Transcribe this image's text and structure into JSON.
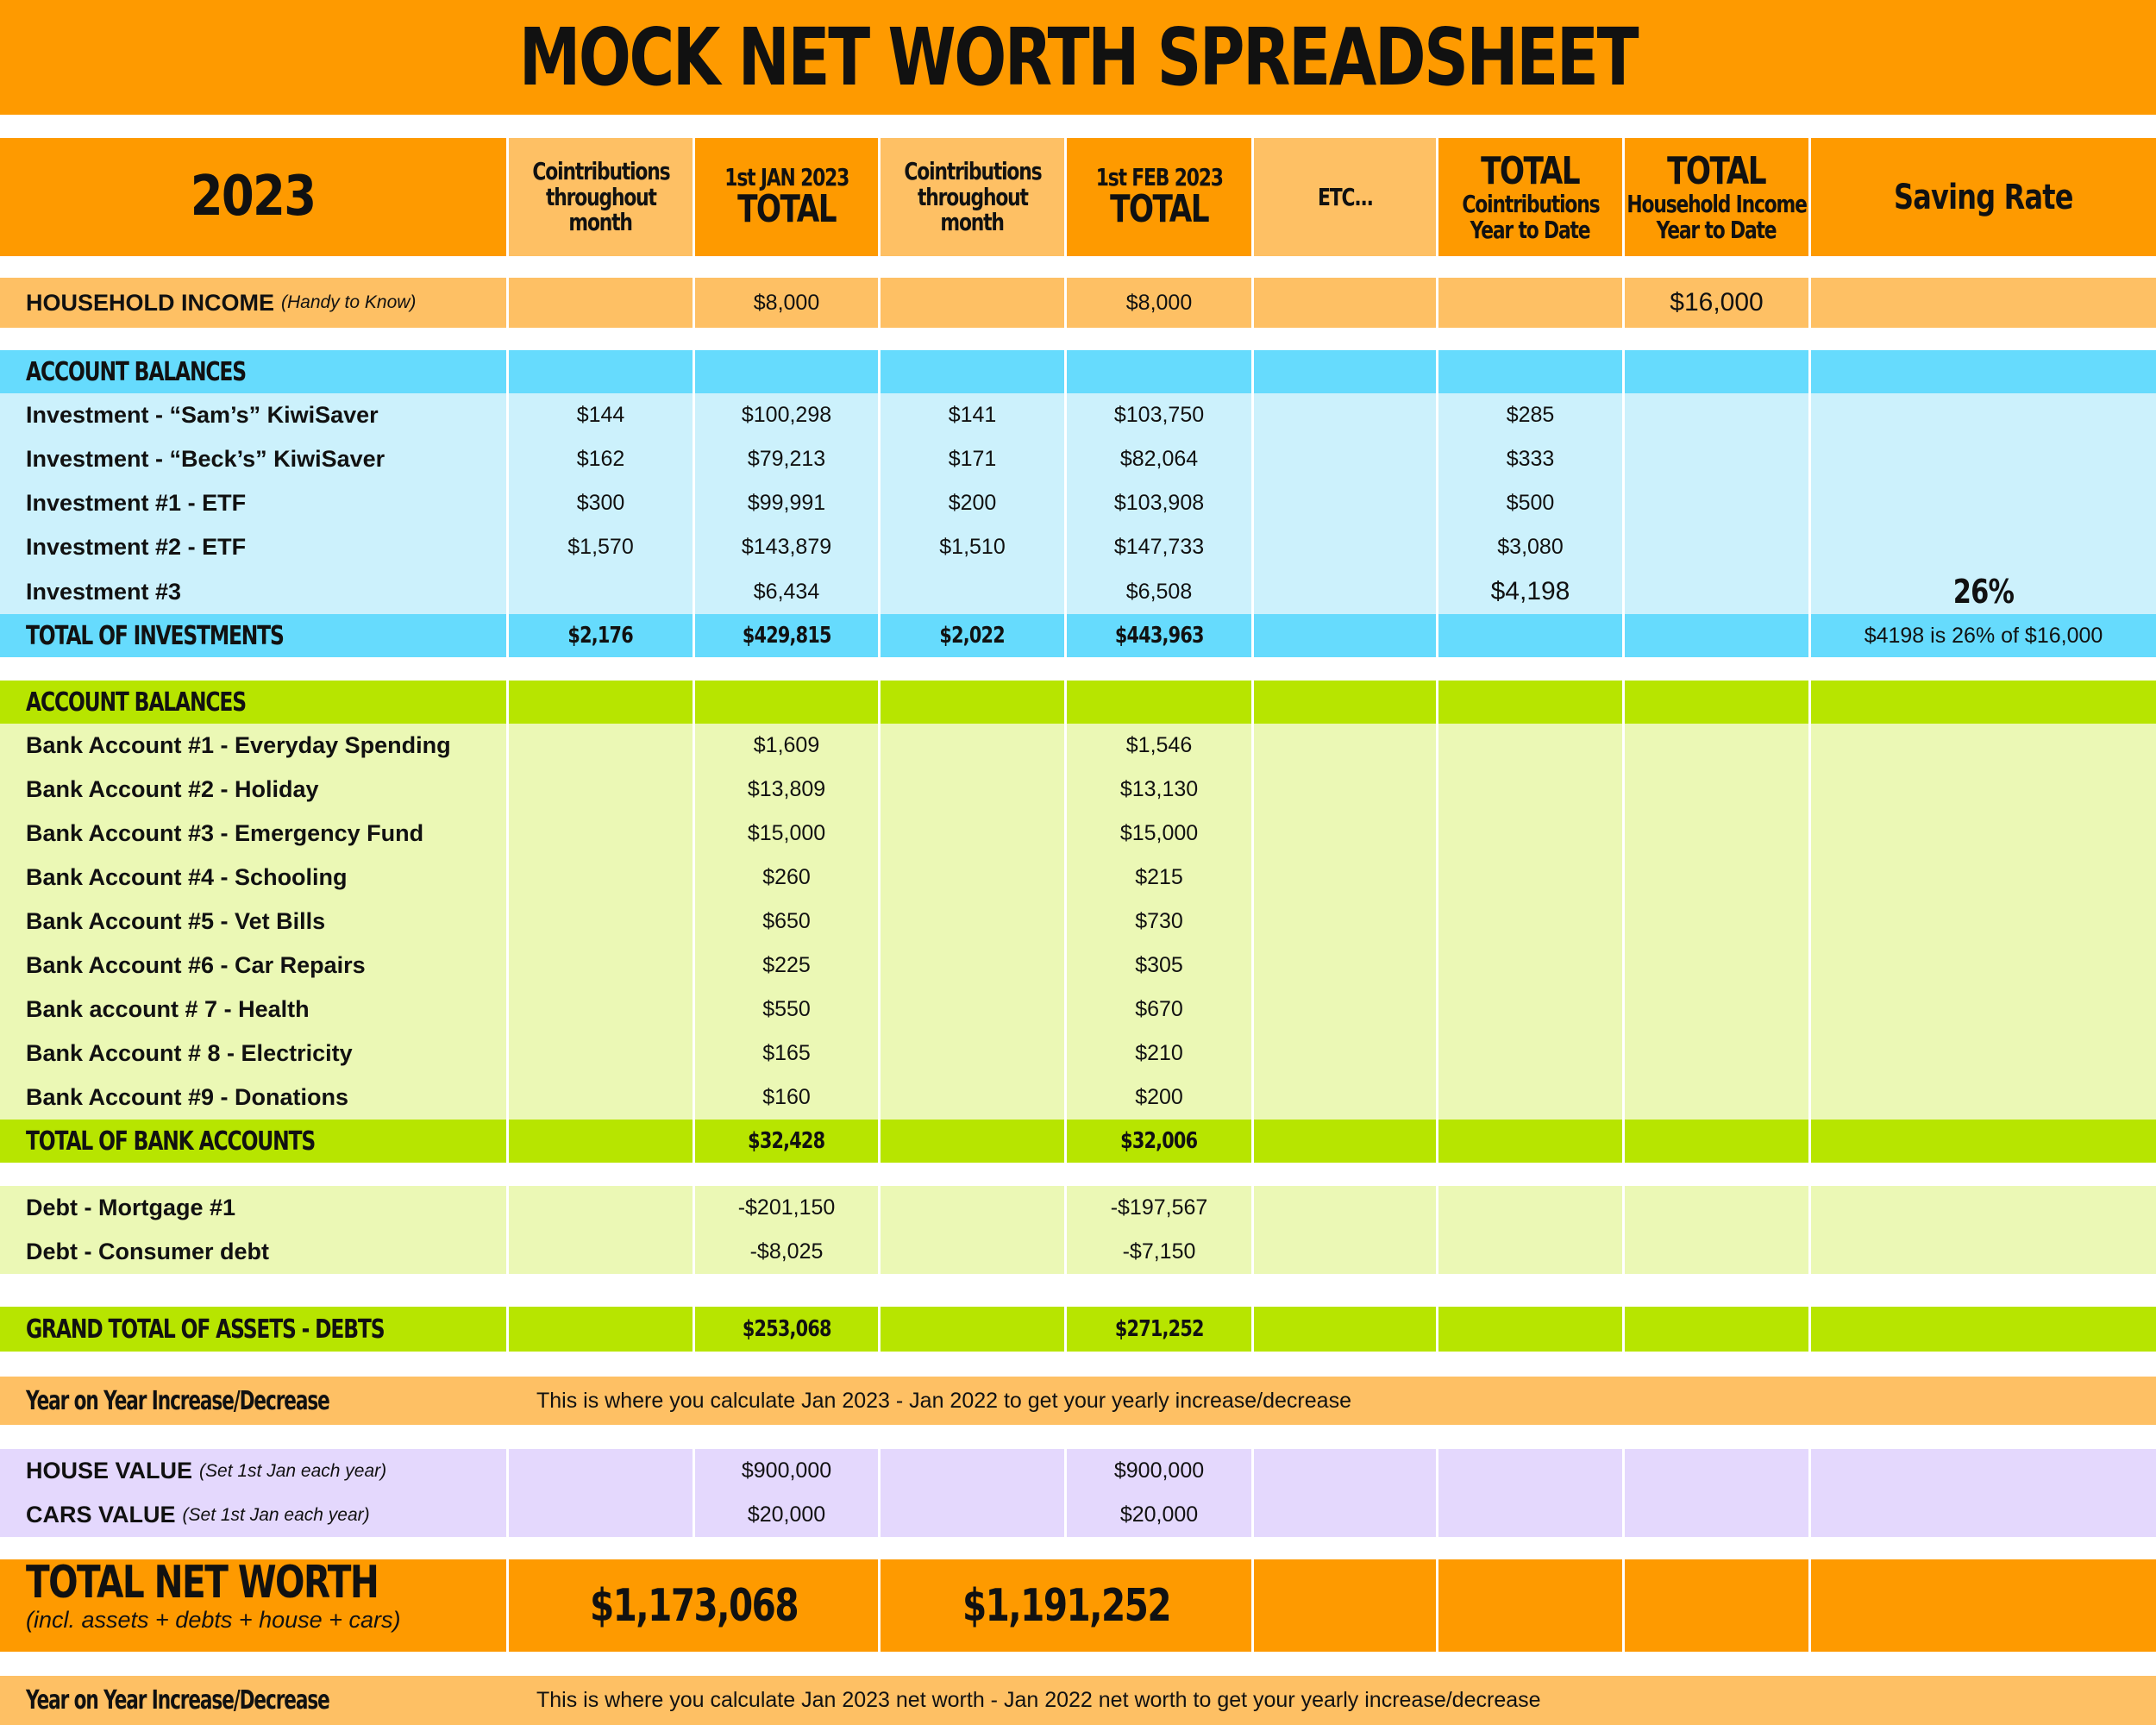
{
  "title": "MOCK NET WORTH SPREADSHEET",
  "header": {
    "year": "2023",
    "contrib": [
      "Cointributions",
      "throughout",
      "month"
    ],
    "jan_top": "1st JAN 2023",
    "feb_top": "1st FEB 2023",
    "total_word": "TOTAL",
    "etc": "ETC...",
    "ytd_contrib": [
      "Cointributions",
      "Year to Date"
    ],
    "ytd_income": [
      "Household Income",
      "Year to Date"
    ],
    "saving_rate": "Saving Rate"
  },
  "household_income": {
    "label": "HOUSEHOLD INCOME",
    "note": "(Handy to Know)",
    "jan": "$8,000",
    "feb": "$8,000",
    "ytd": "$16,000"
  },
  "investments": {
    "section_label": "ACCOUNT BALANCES",
    "rows": [
      {
        "label": "Investment - “Sam’s” KiwiSaver",
        "c1": "$144",
        "jan": "$100,298",
        "c2": "$141",
        "feb": "$103,750",
        "ytd": "$285"
      },
      {
        "label": "Investment - “Beck’s” KiwiSaver",
        "c1": "$162",
        "jan": "$79,213",
        "c2": "$171",
        "feb": "$82,064",
        "ytd": "$333"
      },
      {
        "label": "Investment #1 - ETF",
        "c1": "$300",
        "jan": "$99,991",
        "c2": "$200",
        "feb": "$103,908",
        "ytd": "$500"
      },
      {
        "label": "Investment #2 - ETF",
        "c1": "$1,570",
        "jan": "$143,879",
        "c2": "$1,510",
        "feb": "$147,733",
        "ytd": "$3,080"
      },
      {
        "label": "Investment #3",
        "c1": "",
        "jan": "$6,434",
        "c2": "",
        "feb": "$6,508",
        "ytd": "$4,198",
        "rate": "26%"
      }
    ],
    "total": {
      "label": "TOTAL OF INVESTMENTS",
      "c1": "$2,176",
      "jan": "$429,815",
      "c2": "$2,022",
      "feb": "$443,963",
      "rate_note": "$4198 is 26% of $16,000"
    }
  },
  "banks": {
    "section_label": "ACCOUNT BALANCES",
    "rows": [
      {
        "label": "Bank Account #1 - Everyday Spending",
        "jan": "$1,609",
        "feb": "$1,546"
      },
      {
        "label": "Bank Account #2 - Holiday",
        "jan": "$13,809",
        "feb": "$13,130"
      },
      {
        "label": "Bank Account #3 - Emergency Fund",
        "jan": "$15,000",
        "feb": "$15,000"
      },
      {
        "label": "Bank Account #4 - Schooling",
        "jan": "$260",
        "feb": "$215"
      },
      {
        "label": "Bank Account #5 - Vet Bills",
        "jan": "$650",
        "feb": "$730"
      },
      {
        "label": "Bank Account #6 - Car Repairs",
        "jan": "$225",
        "feb": "$305"
      },
      {
        "label": "Bank account # 7 - Health",
        "jan": "$550",
        "feb": "$670"
      },
      {
        "label": "Bank Account # 8 - Electricity",
        "jan": "$165",
        "feb": "$210"
      },
      {
        "label": "Bank Account #9 - Donations",
        "jan": "$160",
        "feb": "$200"
      }
    ],
    "total": {
      "label": "TOTAL OF BANK ACCOUNTS",
      "jan": "$32,428",
      "feb": "$32,006"
    }
  },
  "debts": [
    {
      "label": "Debt - Mortgage #1",
      "jan": "-$201,150",
      "feb": "-$197,567"
    },
    {
      "label": "Debt - Consumer debt",
      "jan": "-$8,025",
      "feb": "-$7,150"
    }
  ],
  "grand_total": {
    "label": "GRAND TOTAL OF ASSETS - DEBTS",
    "jan": "$253,068",
    "feb": "$271,252"
  },
  "yoy1": {
    "label": "Year on Year Increase/Decrease",
    "text": "This is where you calculate Jan 2023 - Jan 2022 to get your yearly increase/decrease"
  },
  "house": {
    "label": "HOUSE VALUE",
    "note": "(Set 1st Jan each year)",
    "jan": "$900,000",
    "feb": "$900,000"
  },
  "cars": {
    "label": "CARS VALUE",
    "note": "(Set 1st Jan each year)",
    "jan": "$20,000",
    "feb": "$20,000"
  },
  "net_worth": {
    "label": "TOTAL NET WORTH",
    "sub": "(incl. assets + debts + house + cars)",
    "jan": "$1,173,068",
    "feb": "$1,191,252"
  },
  "yoy2": {
    "label": "Year on Year Increase/Decrease",
    "text": "This is where you calculate Jan 2023 net worth - Jan 2022 net worth to get your yearly increase/decrease"
  }
}
